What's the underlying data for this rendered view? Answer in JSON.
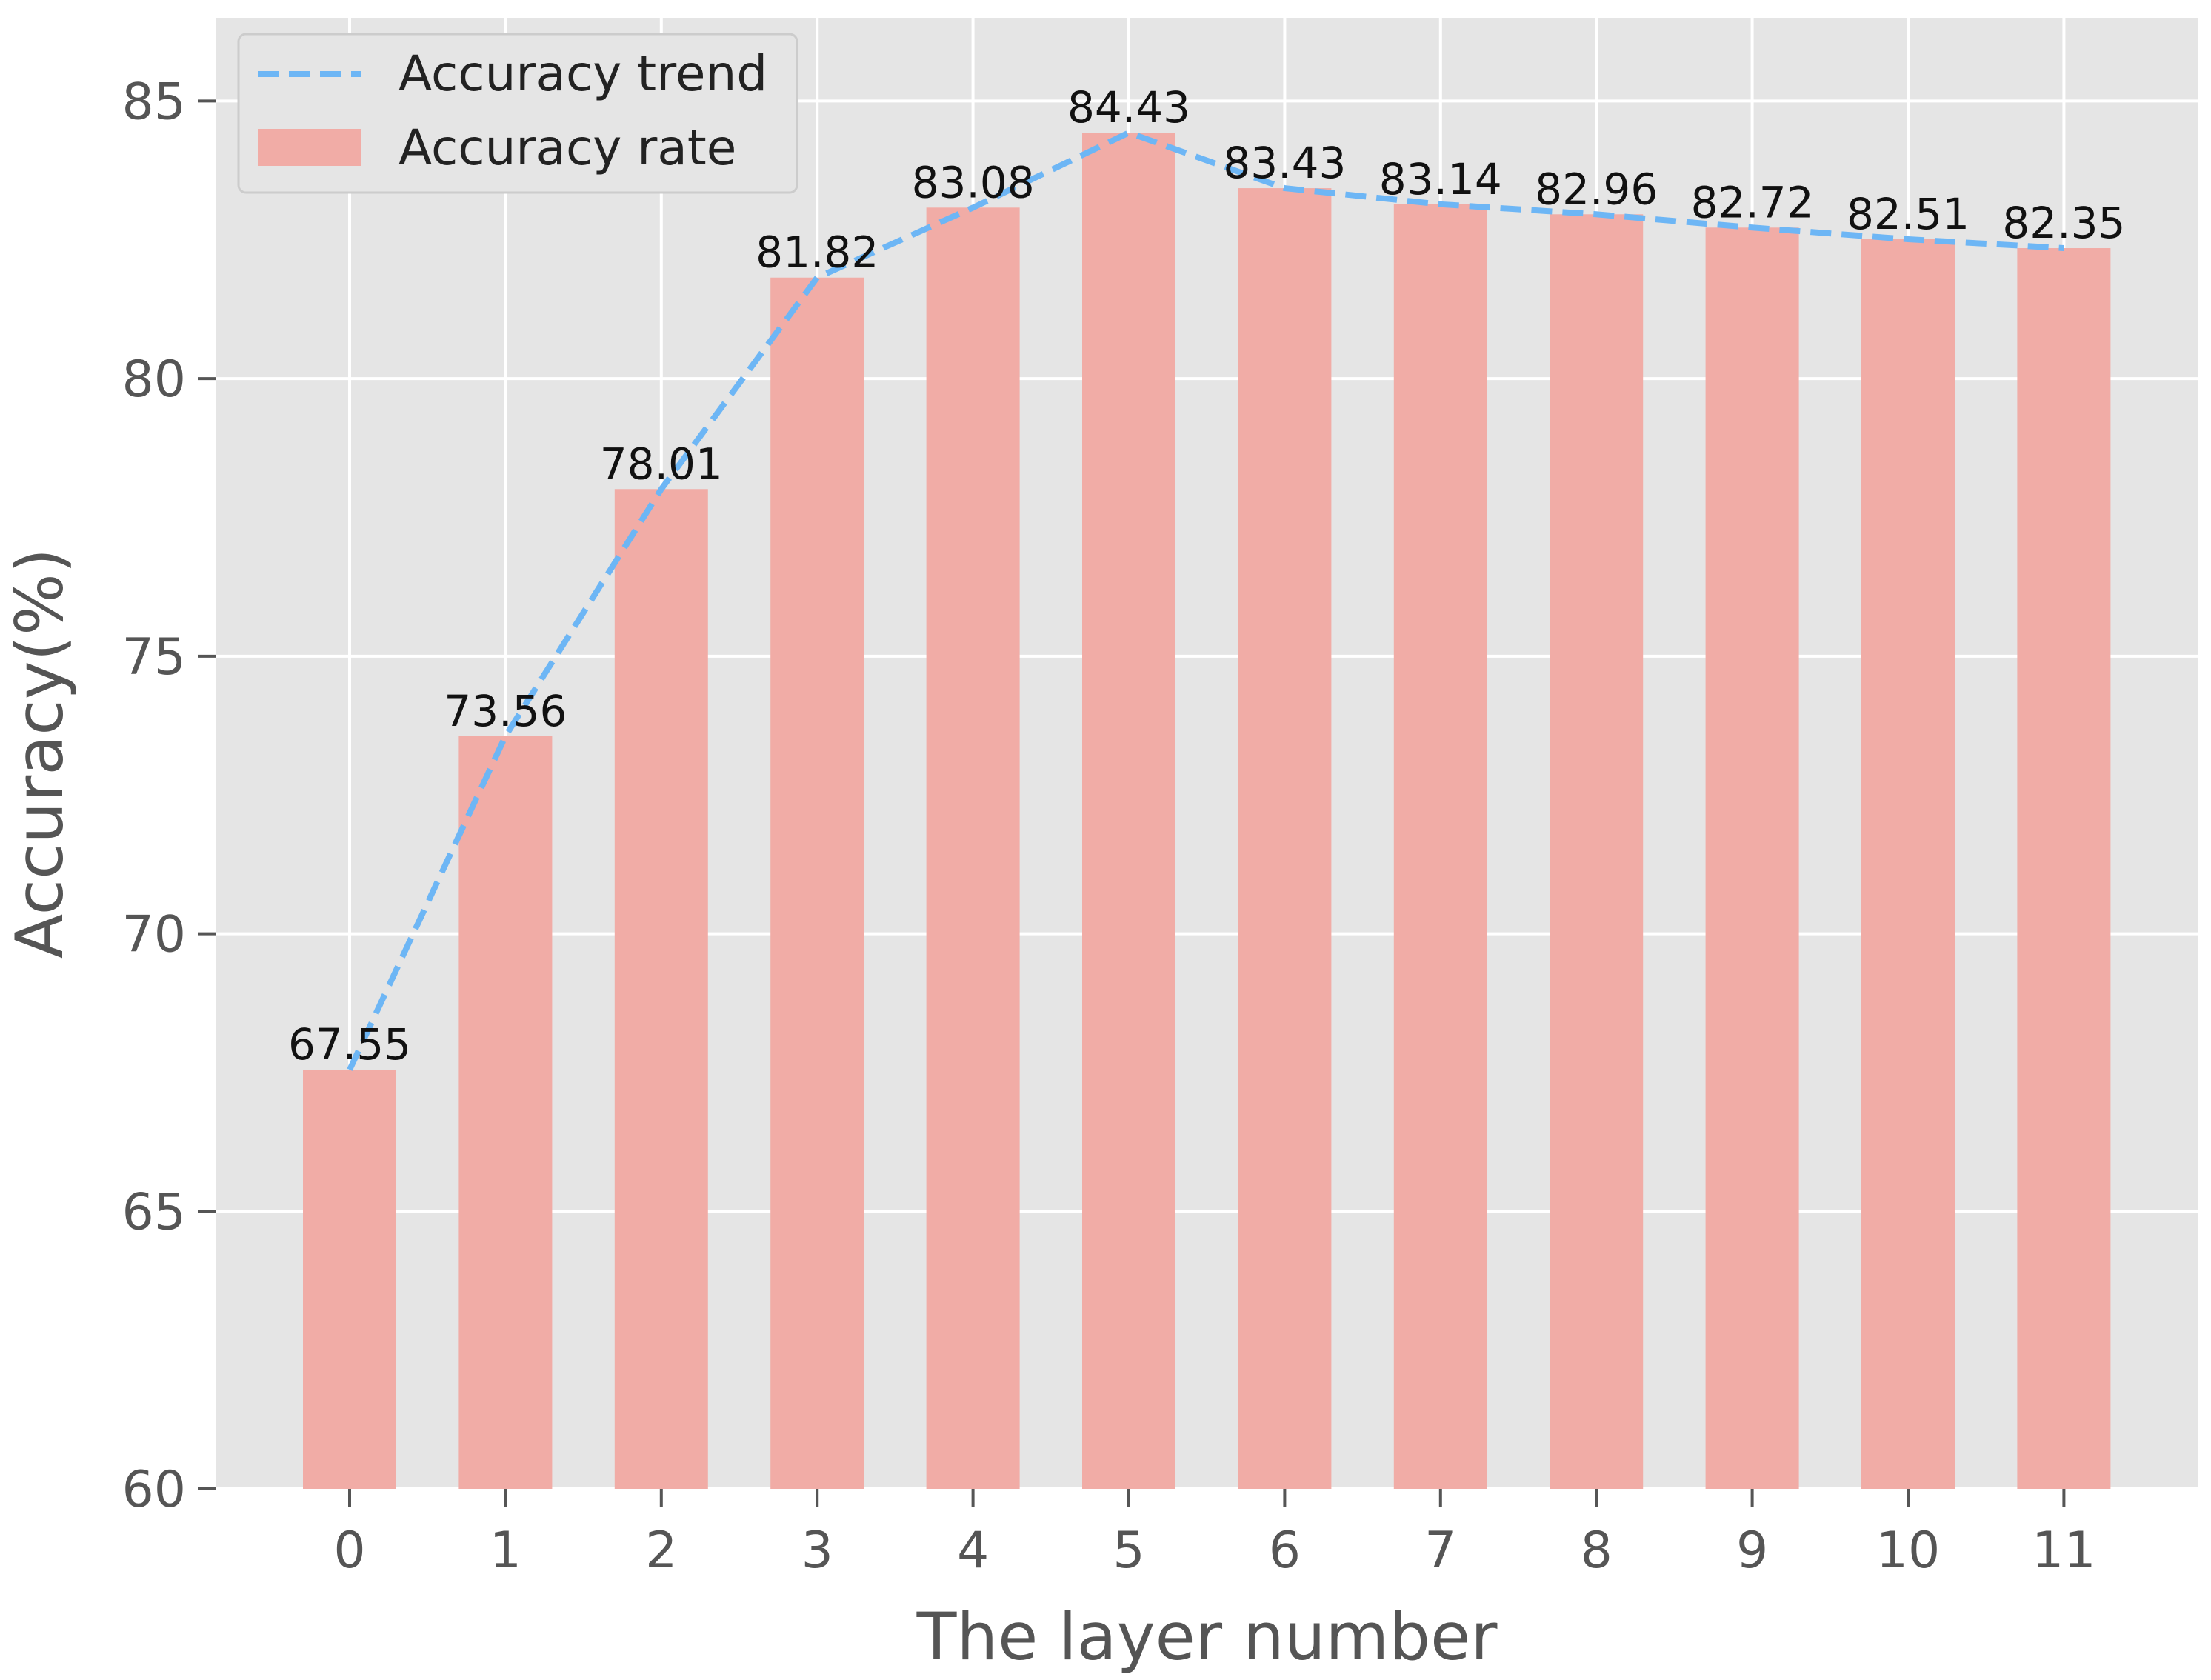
{
  "chart_data": {
    "type": "bar",
    "title": "",
    "xlabel": "The layer number",
    "ylabel": "Accuracy(%)",
    "categories": [
      "0",
      "1",
      "2",
      "3",
      "4",
      "5",
      "6",
      "7",
      "8",
      "9",
      "10",
      "11"
    ],
    "series": [
      {
        "name": "Accuracy rate",
        "type": "bar",
        "color": "#f1aca6",
        "values": [
          67.55,
          73.56,
          78.01,
          81.82,
          83.08,
          84.43,
          83.43,
          83.14,
          82.96,
          82.72,
          82.51,
          82.35
        ]
      },
      {
        "name": "Accuracy trend",
        "type": "line",
        "style": "dashed",
        "color": "#6db6f5",
        "values": [
          67.55,
          73.56,
          78.01,
          81.82,
          83.08,
          84.43,
          83.43,
          83.14,
          82.96,
          82.72,
          82.51,
          82.35
        ]
      }
    ],
    "data_labels": [
      "67.55",
      "73.56",
      "78.01",
      "81.82",
      "83.08",
      "84.43",
      "83.43",
      "83.14",
      "82.96",
      "82.72",
      "82.51",
      "82.35"
    ],
    "ylim": [
      60,
      86.5
    ],
    "yticks": [
      60,
      65,
      70,
      75,
      80,
      85
    ],
    "ytick_labels": [
      "60",
      "65",
      "70",
      "75",
      "80",
      "85"
    ],
    "grid": true,
    "background_color": "#e5e5e5",
    "grid_color": "#ffffff",
    "legend": {
      "position": "top-left",
      "entries": [
        "Accuracy trend",
        "Accuracy rate"
      ]
    }
  }
}
